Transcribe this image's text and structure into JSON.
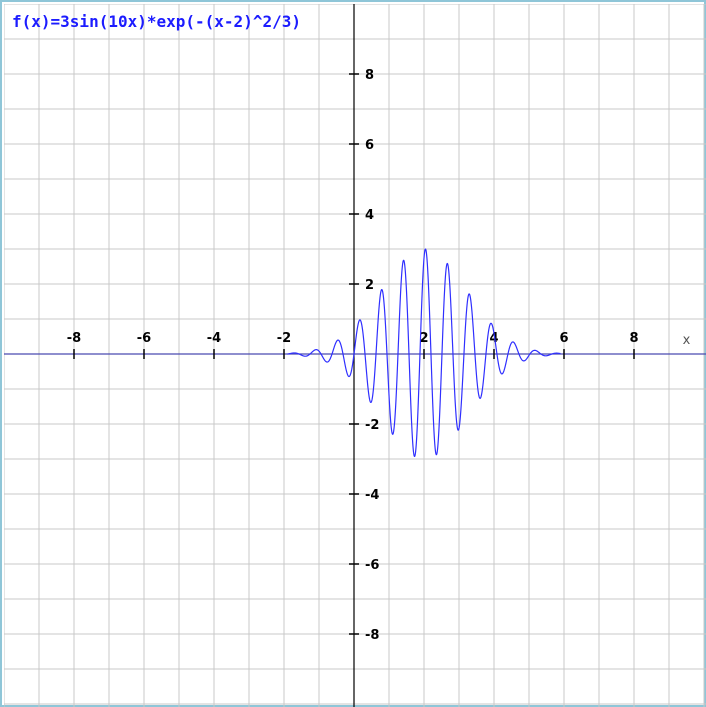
{
  "colors": {
    "background": "#ffffff",
    "grid": "#c8c8c8",
    "x_axis": "#4a4ab0",
    "y_axis": "#000000",
    "curve": "#2f2fff",
    "frame": "#8fc6d8",
    "formula": "#1c1cff"
  },
  "formula_label": "f(x)=3sin(10x)*exp(-(x-2)^2/3)",
  "chart_data": {
    "type": "line",
    "title": "f(x)=3sin(10x)*exp(-(x-2)^2/3)",
    "xlabel": "x",
    "ylabel": "",
    "xlim": [
      -10,
      10
    ],
    "ylim": [
      -10,
      10
    ],
    "grid": true,
    "grid_step": 1,
    "x_ticks": [
      -8,
      -6,
      -4,
      -2,
      2,
      4,
      6,
      8
    ],
    "x_tick_labels": [
      "-8",
      "-6",
      "-4",
      "-2",
      "2",
      "4",
      "6",
      "8"
    ],
    "y_ticks": [
      8,
      6,
      4,
      2,
      -2,
      -4,
      -6,
      -8
    ],
    "y_tick_labels": [
      "8",
      "6",
      "4",
      "2",
      "-2",
      "-4",
      "-6",
      "-8"
    ],
    "series": [
      {
        "function": "3*sin(10*x)*exp(-(x-2)^2/3)",
        "x_range": [
          -1.9,
          5.9
        ],
        "samples": 1600
      }
    ]
  }
}
